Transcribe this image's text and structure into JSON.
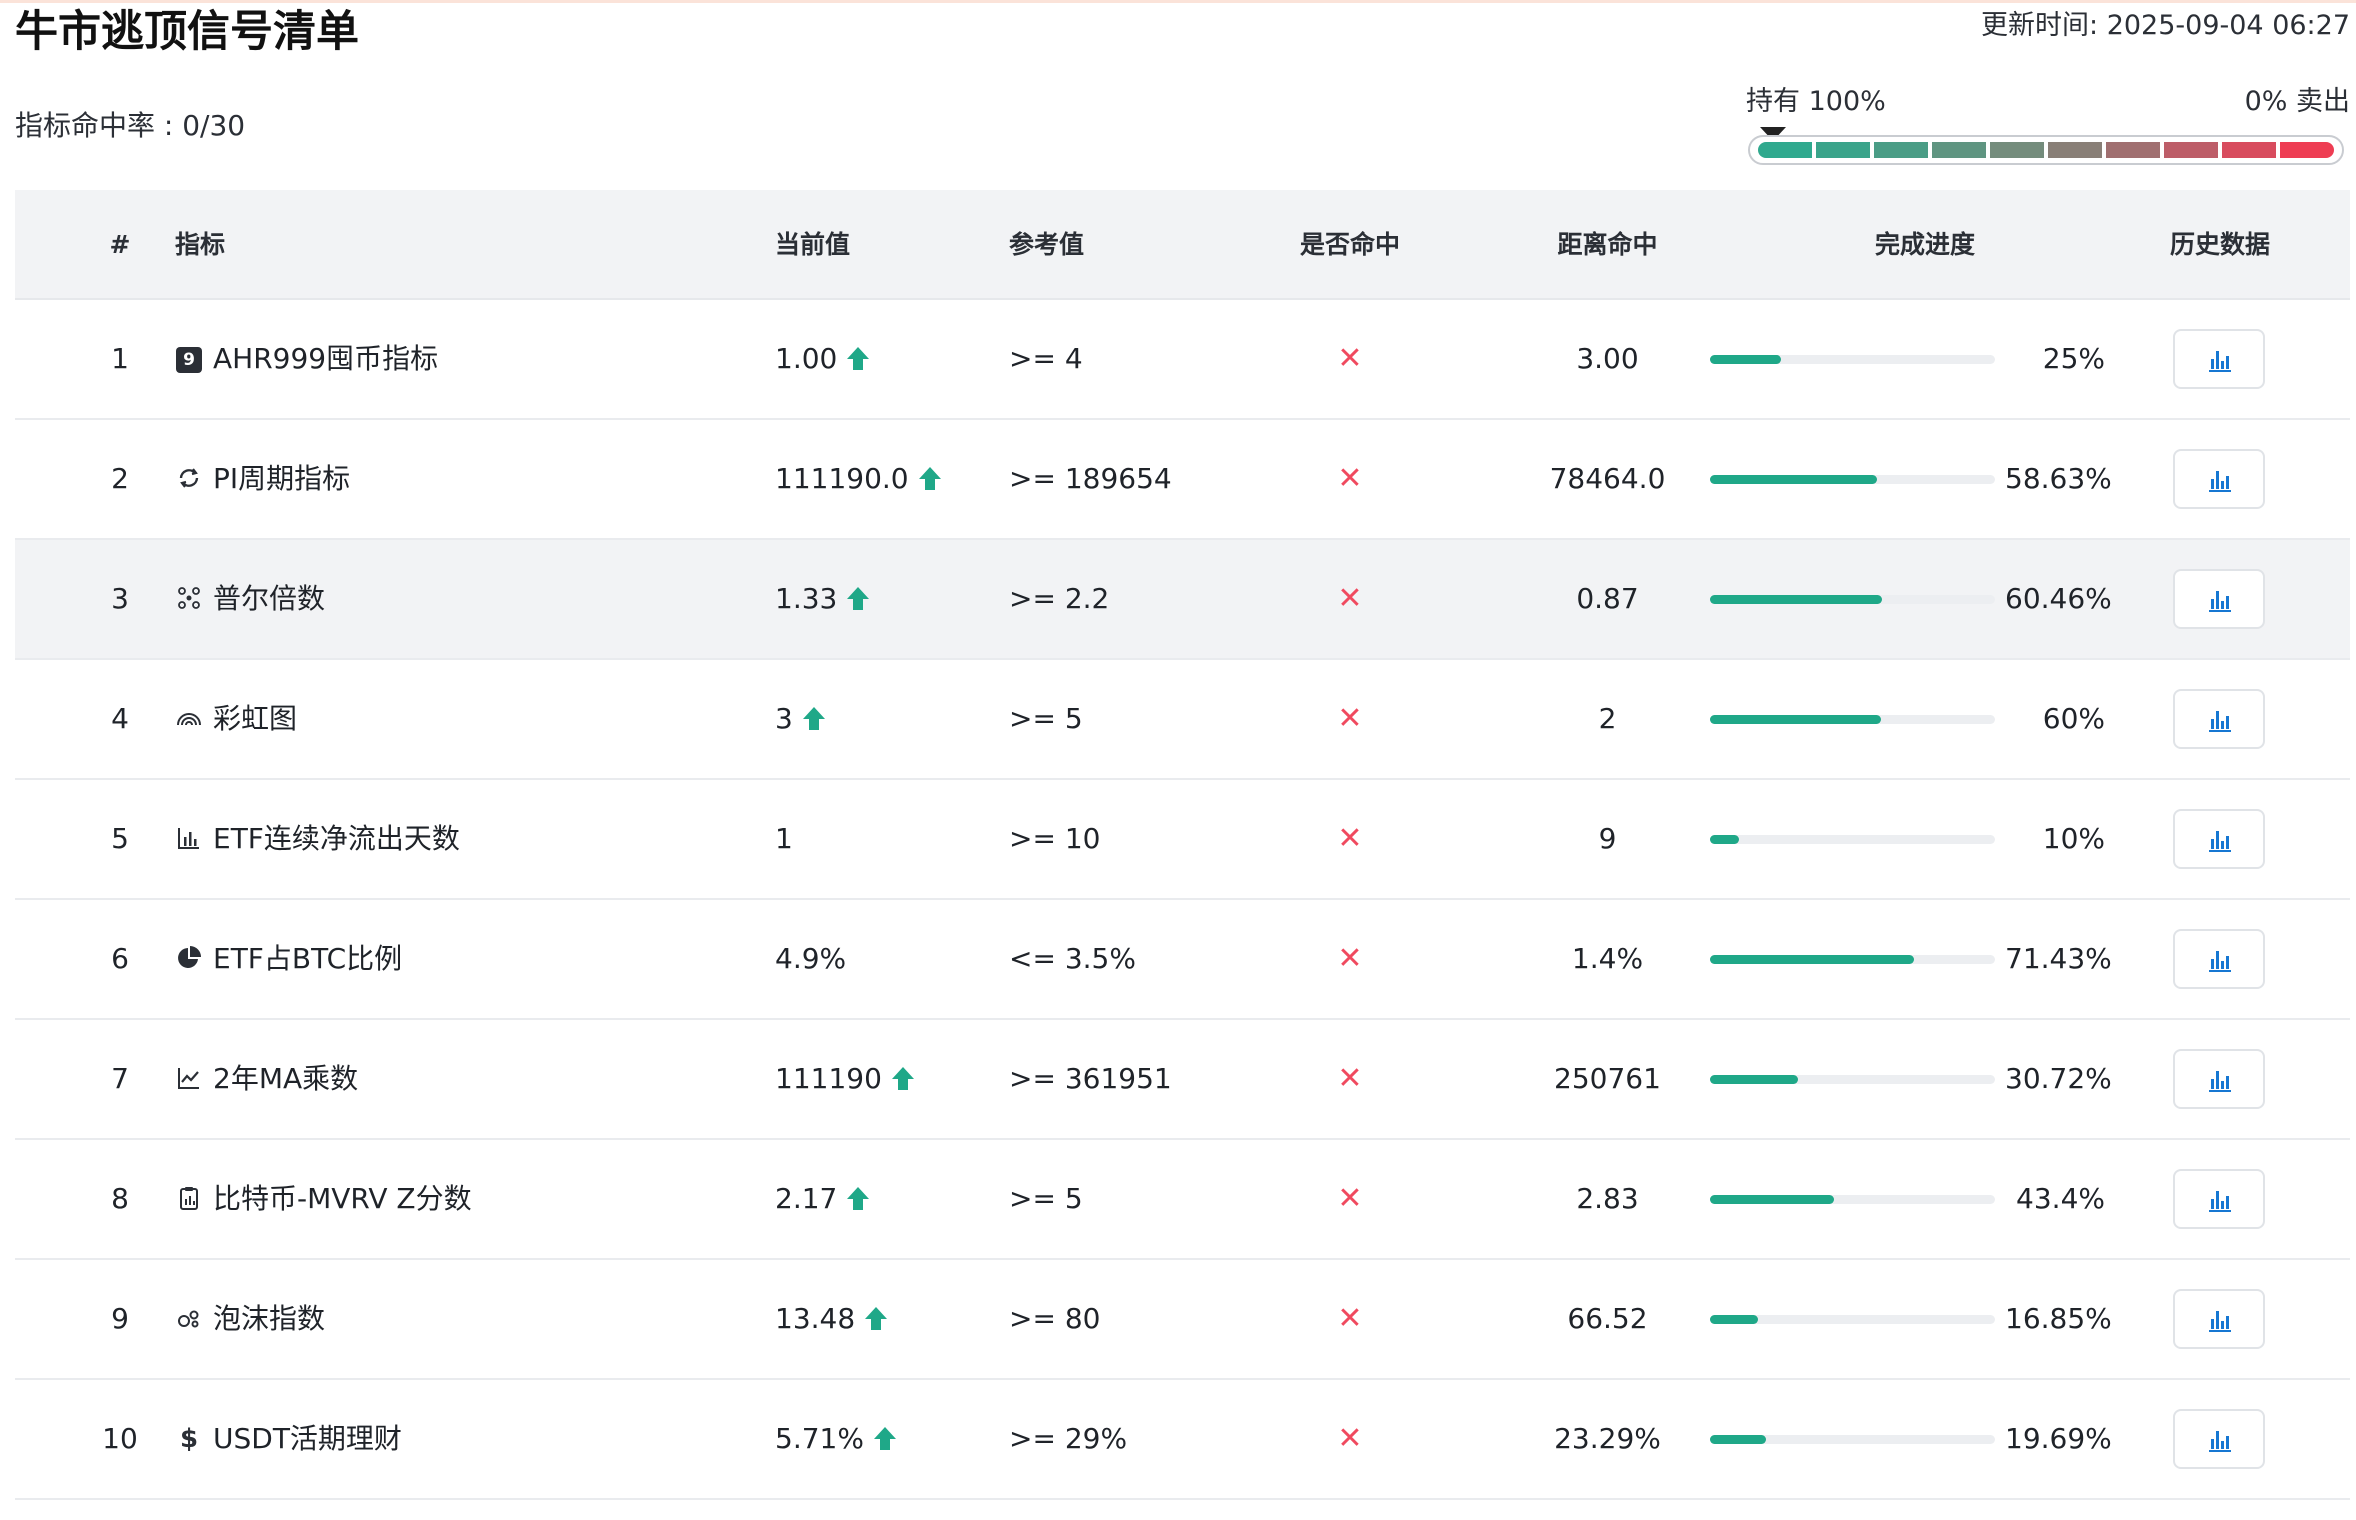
{
  "page_title": "牛市逃顶信号清单",
  "updated": "更新时间: 2025-09-04 06:27",
  "hit_rate": "指标命中率 : 0/30",
  "gauge": {
    "hold_label": "持有 100%",
    "sell_label": "0% 卖出",
    "position": 0,
    "segments": [
      "#2fa98e",
      "#3aa48a",
      "#4a9d86",
      "#5f9581",
      "#748c7c",
      "#897f77",
      "#a06f70",
      "#bd5d68",
      "#d84c5e",
      "#ee3d53"
    ]
  },
  "columns": {
    "num": "#",
    "name": "指标",
    "current": "当前值",
    "reference": "参考值",
    "hit": "是否命中",
    "distance": "距离命中",
    "progress": "完成进度",
    "history": "历史数据"
  },
  "colors": {
    "accent": "#1fa888",
    "miss": "#f04a5f",
    "chart_icon": "#1677d2"
  },
  "rows": [
    {
      "num": "1",
      "icon": "number-nine-icon",
      "name": "AHR999囤币指标",
      "current": "1.00",
      "up": true,
      "reference": ">= 4",
      "hit": "✕",
      "distance": "3.00",
      "progress": 0.25,
      "progress_label": "25%"
    },
    {
      "num": "2",
      "icon": "cycle-arrows-icon",
      "name": "PI周期指标",
      "current": "111190.0",
      "up": true,
      "reference": ">= 189654",
      "hit": "✕",
      "distance": "78464.0",
      "progress": 0.5863,
      "progress_label": "58.63%"
    },
    {
      "num": "3",
      "icon": "network-nodes-icon",
      "name": "普尔倍数",
      "current": "1.33",
      "up": true,
      "reference": ">= 2.2",
      "hit": "✕",
      "distance": "0.87",
      "progress": 0.6046,
      "progress_label": "60.46%"
    },
    {
      "num": "4",
      "icon": "rainbow-icon",
      "name": "彩虹图",
      "current": "3",
      "up": true,
      "reference": ">= 5",
      "hit": "✕",
      "distance": "2",
      "progress": 0.6,
      "progress_label": "60%"
    },
    {
      "num": "5",
      "icon": "bar-chart-icon",
      "name": "ETF连续净流出天数",
      "current": "1",
      "up": false,
      "reference": ">= 10",
      "hit": "✕",
      "distance": "9",
      "progress": 0.1,
      "progress_label": "10%"
    },
    {
      "num": "6",
      "icon": "pie-chart-icon",
      "name": "ETF占BTC比例",
      "current": "4.9%",
      "up": false,
      "reference": "<= 3.5%",
      "hit": "✕",
      "distance": "1.4%",
      "progress": 0.7143,
      "progress_label": "71.43%"
    },
    {
      "num": "7",
      "icon": "trend-line-icon",
      "name": "2年MA乘数",
      "current": "111190",
      "up": true,
      "reference": ">= 361951",
      "hit": "✕",
      "distance": "250761",
      "progress": 0.3072,
      "progress_label": "30.72%"
    },
    {
      "num": "8",
      "icon": "clipboard-icon",
      "name": "比特币-MVRV Z分数",
      "current": "2.17",
      "up": true,
      "reference": ">= 5",
      "hit": "✕",
      "distance": "2.83",
      "progress": 0.434,
      "progress_label": "43.4%"
    },
    {
      "num": "9",
      "icon": "bubbles-icon",
      "name": "泡沫指数",
      "current": "13.48",
      "up": true,
      "reference": ">= 80",
      "hit": "✕",
      "distance": "66.52",
      "progress": 0.1685,
      "progress_label": "16.85%"
    },
    {
      "num": "10",
      "icon": "dollar-icon",
      "name": "USDT活期理财",
      "current": "5.71%",
      "up": true,
      "reference": ">= 29%",
      "hit": "✕",
      "distance": "23.29%",
      "progress": 0.1969,
      "progress_label": "19.69%"
    }
  ]
}
